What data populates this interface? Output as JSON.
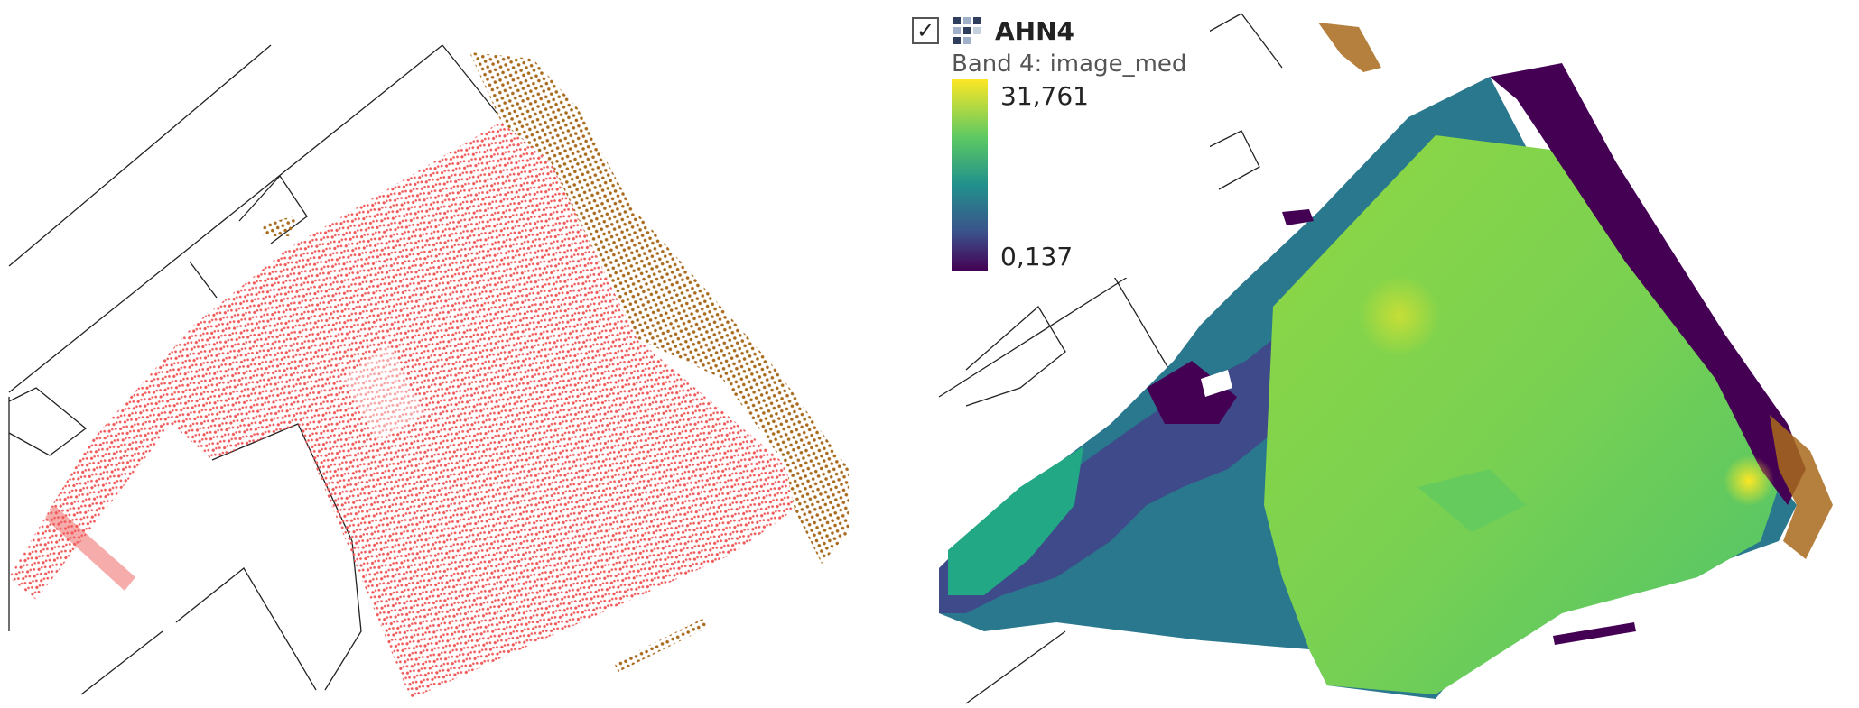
{
  "legend": {
    "layer_name": "AHN4",
    "checkbox_mark": "✓",
    "band_label": "Band 4: image_med",
    "max_value": "31,761",
    "min_value": "0,137",
    "ramp_colors": [
      "#fde725",
      "#5ec962",
      "#21918c",
      "#3b528b",
      "#440154"
    ]
  },
  "colors": {
    "building_points": "#f05a5a",
    "tree_points": "#a86a1c",
    "parcel_lines": "#222222"
  },
  "icons": {
    "layer_visibility": "checkbox-icon",
    "layer_type": "raster-layer-icon"
  }
}
